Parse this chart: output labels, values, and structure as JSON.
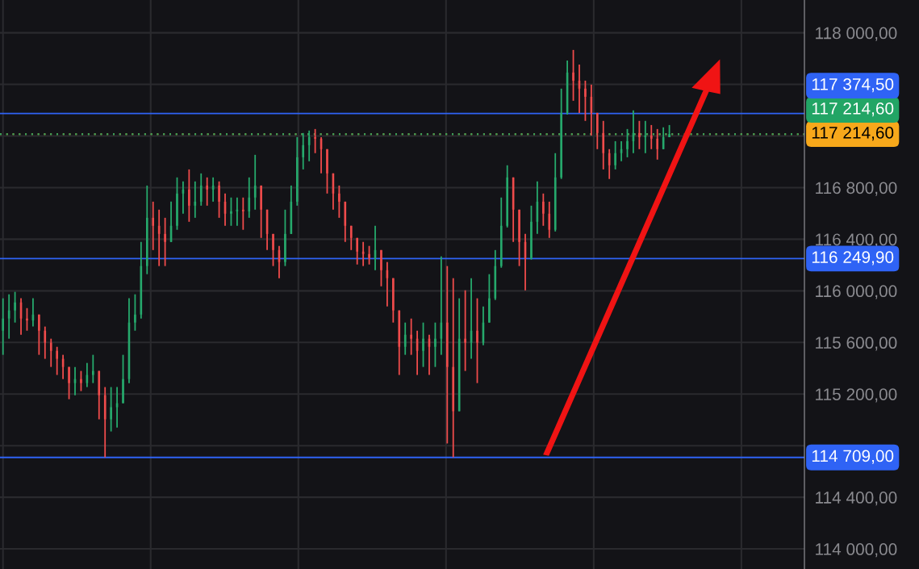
{
  "chart_data": {
    "type": "candlestick",
    "categories": [
      null,
      null,
      null,
      null,
      null,
      null,
      null,
      null,
      null,
      null,
      null,
      null,
      null,
      null,
      null,
      null,
      null,
      null,
      null,
      null,
      null,
      null,
      null,
      null,
      null,
      null,
      null,
      null,
      null,
      null,
      null,
      null,
      null,
      null,
      null,
      null,
      null,
      null,
      null,
      null,
      null,
      null,
      null,
      null,
      null,
      null,
      null,
      null,
      null,
      null,
      null,
      null,
      null,
      null,
      null,
      null,
      null,
      null,
      null,
      null,
      null,
      null,
      null,
      null,
      null,
      null,
      null,
      null,
      null,
      null,
      null,
      null,
      null,
      null,
      null,
      null,
      null,
      null,
      null,
      null,
      null,
      null,
      null,
      null,
      null,
      null,
      null,
      null,
      null,
      null,
      null,
      null,
      null,
      null,
      null,
      null,
      null,
      null,
      null,
      null,
      null,
      null,
      null,
      null,
      null,
      null,
      null,
      null,
      null,
      null,
      null,
      null,
      null,
      null,
      null,
      null,
      null,
      null,
      null,
      null,
      null,
      null,
      null,
      null,
      null,
      null,
      null,
      null,
      null,
      null,
      null,
      null,
      null,
      null
    ],
    "ohlc": [
      [
        115691,
        115942,
        115504,
        115785
      ],
      [
        115785,
        115973,
        115629,
        115848
      ],
      [
        115848,
        115992,
        115754,
        115910
      ],
      [
        115910,
        115942,
        115660,
        115785
      ],
      [
        115785,
        115866,
        115691,
        115770
      ],
      [
        115770,
        115942,
        115723,
        115816
      ],
      [
        115816,
        115816,
        115504,
        115691
      ],
      [
        115691,
        115723,
        115473,
        115598
      ],
      [
        115598,
        115629,
        115410,
        115535
      ],
      [
        115535,
        115566,
        115348,
        115473
      ],
      [
        115473,
        115504,
        115316,
        115410
      ],
      [
        115410,
        115410,
        115160,
        115285
      ],
      [
        115285,
        115410,
        115191,
        115316
      ],
      [
        115316,
        115379,
        115223,
        115285
      ],
      [
        115285,
        115441,
        115254,
        115348
      ],
      [
        115348,
        115504,
        115285,
        115379
      ],
      [
        115379,
        115379,
        115004,
        115191
      ],
      [
        115191,
        115254,
        114710,
        115004
      ],
      [
        115004,
        115254,
        114910,
        115098
      ],
      [
        115098,
        115254,
        114941,
        115129
      ],
      [
        115129,
        115504,
        115129,
        115316
      ],
      [
        115316,
        115942,
        115285,
        115754
      ],
      [
        115754,
        115973,
        115691,
        115816
      ],
      [
        115816,
        116379,
        115785,
        116192
      ],
      [
        116192,
        116816,
        116129,
        116566
      ],
      [
        116566,
        116691,
        116316,
        116504
      ],
      [
        116504,
        116629,
        116192,
        116441
      ],
      [
        116441,
        116566,
        116192,
        116379
      ],
      [
        116379,
        116691,
        116379,
        116504
      ],
      [
        116504,
        116879,
        116473,
        116754
      ],
      [
        116754,
        116848,
        116598,
        116785
      ],
      [
        116785,
        116941,
        116535,
        116660
      ],
      [
        116660,
        116848,
        116566,
        116691
      ],
      [
        116691,
        116910,
        116660,
        116816
      ],
      [
        116816,
        116879,
        116660,
        116785
      ],
      [
        116785,
        116879,
        116691,
        116816
      ],
      [
        116816,
        116848,
        116566,
        116691
      ],
      [
        116691,
        116754,
        116504,
        116598
      ],
      [
        116598,
        116723,
        116504,
        116616
      ],
      [
        116616,
        116723,
        116504,
        116629
      ],
      [
        116629,
        116723,
        116473,
        116616
      ],
      [
        116616,
        116879,
        116566,
        116723
      ],
      [
        116723,
        117054,
        116629,
        116816
      ],
      [
        116816,
        116816,
        116410,
        116629
      ],
      [
        116629,
        116629,
        116316,
        116441
      ],
      [
        116441,
        116441,
        116192,
        116316
      ],
      [
        116316,
        116348,
        116098,
        116223
      ],
      [
        116223,
        116629,
        116192,
        116441
      ],
      [
        116441,
        116816,
        116441,
        116691
      ],
      [
        116691,
        117191,
        116660,
        117035
      ],
      [
        117035,
        117223,
        116941,
        117129
      ],
      [
        117129,
        117242,
        117004,
        117191
      ],
      [
        117191,
        117254,
        117067,
        117179
      ],
      [
        117179,
        117191,
        116910,
        117098
      ],
      [
        117098,
        117098,
        116754,
        116910
      ],
      [
        116910,
        116910,
        116629,
        116754
      ],
      [
        116754,
        116816,
        116566,
        116691
      ],
      [
        116691,
        116691,
        116379,
        116504
      ],
      [
        116504,
        116504,
        116316,
        116410
      ],
      [
        116410,
        116410,
        116204,
        116304
      ],
      [
        116304,
        116379,
        116192,
        116285
      ],
      [
        116285,
        116348,
        116204,
        116254
      ],
      [
        116254,
        116504,
        116160,
        116316
      ],
      [
        116316,
        116316,
        116035,
        116160
      ],
      [
        116160,
        116223,
        115879,
        116098
      ],
      [
        116098,
        116098,
        115754,
        115848
      ],
      [
        115848,
        115848,
        115348,
        115566
      ],
      [
        115566,
        115754,
        115504,
        115660
      ],
      [
        115660,
        115785,
        115504,
        115629
      ],
      [
        115629,
        115691,
        115348,
        115535
      ],
      [
        115535,
        115754,
        115410,
        115629
      ],
      [
        115629,
        115660,
        115348,
        115566
      ],
      [
        115566,
        115754,
        115410,
        115629
      ],
      [
        115629,
        116267,
        115504,
        115754
      ],
      [
        115754,
        116192,
        114817,
        115410
      ],
      [
        115410,
        116098,
        114710,
        115067
      ],
      [
        115067,
        115942,
        115067,
        115629
      ],
      [
        115629,
        116004,
        115379,
        115598
      ],
      [
        115598,
        116098,
        115473,
        115691
      ],
      [
        115691,
        115942,
        115285,
        115598
      ],
      [
        115598,
        115879,
        115579,
        115754
      ],
      [
        115754,
        116129,
        115754,
        115942
      ],
      [
        115942,
        116316,
        115929,
        116192
      ],
      [
        116192,
        116723,
        116179,
        116504
      ],
      [
        116504,
        116973,
        116491,
        116879
      ],
      [
        116879,
        116879,
        116379,
        116629
      ],
      [
        116629,
        116629,
        116192,
        116379
      ],
      [
        116379,
        116441,
        116004,
        116254
      ],
      [
        116254,
        116660,
        116242,
        116535
      ],
      [
        116535,
        116848,
        116441,
        116691
      ],
      [
        116691,
        116754,
        116504,
        116598
      ],
      [
        116598,
        116691,
        116410,
        116473
      ],
      [
        116473,
        117067,
        116460,
        116879
      ],
      [
        116879,
        117567,
        116867,
        117379
      ],
      [
        117379,
        117785,
        117366,
        117692
      ],
      [
        117692,
        117867,
        117473,
        117629
      ],
      [
        117629,
        117754,
        117379,
        117567
      ],
      [
        117567,
        117629,
        117317,
        117504
      ],
      [
        117504,
        117598,
        117204,
        117379
      ],
      [
        117379,
        117379,
        117098,
        117223
      ],
      [
        117223,
        117317,
        116941,
        117067
      ],
      [
        117067,
        117098,
        116867,
        116973
      ],
      [
        116973,
        117160,
        116941,
        117067
      ],
      [
        117067,
        117160,
        117004,
        117098
      ],
      [
        117098,
        117254,
        117035,
        117160
      ],
      [
        117160,
        117398,
        117067,
        117223
      ],
      [
        117223,
        117317,
        117098,
        117191
      ],
      [
        117191,
        117317,
        117067,
        117204
      ],
      [
        117204,
        117285,
        117098,
        117179
      ],
      [
        117179,
        117254,
        117017,
        117098
      ],
      [
        117098,
        117267,
        117098,
        117191
      ],
      [
        117191,
        117285,
        117191,
        117215
      ],
      null,
      null,
      null,
      null,
      null,
      null,
      null,
      null,
      null,
      null,
      null,
      null,
      null,
      null,
      null,
      null,
      null,
      null,
      null,
      null,
      null,
      null
    ],
    "ylim": [
      113844,
      118254
    ],
    "yticks": [
      {
        "value": 114000,
        "label": "114 000,00"
      },
      {
        "value": 114400,
        "label": "114 400,00"
      },
      {
        "value": 114800,
        "label": null
      },
      {
        "value": 115200,
        "label": "115 200,00"
      },
      {
        "value": 115600,
        "label": "115 600,00"
      },
      {
        "value": 116000,
        "label": "116 000,00"
      },
      {
        "value": 116400,
        "label": "116 400,00"
      },
      {
        "value": 116800,
        "label": "116 800,00"
      },
      {
        "value": 117200,
        "label": null
      },
      {
        "value": 117600,
        "label": null
      },
      {
        "value": 118000,
        "label": "118 000,00"
      }
    ],
    "grid": true,
    "tick_labels": "y",
    "ref_lines": [
      {
        "axis": "y",
        "value": 117374.5,
        "label": "117 374,50",
        "color": "#2f63f5",
        "line_style": "solid"
      },
      {
        "axis": "y",
        "value": 116249.9,
        "label": "116 249,90",
        "color": "#2f63f5",
        "line_style": "solid"
      },
      {
        "axis": "y",
        "value": 114709,
        "label": "114 709,00",
        "color": "#2f63f5",
        "line_style": "solid"
      },
      {
        "axis": "y",
        "value": 117214.6,
        "label": "117 214,60",
        "color": "#f7a81b",
        "line_style": "dotted"
      },
      {
        "axis": "y",
        "value": 117214.6,
        "label": "117 214,60",
        "color": "#22a565",
        "line_style": "dotted"
      }
    ]
  }
}
